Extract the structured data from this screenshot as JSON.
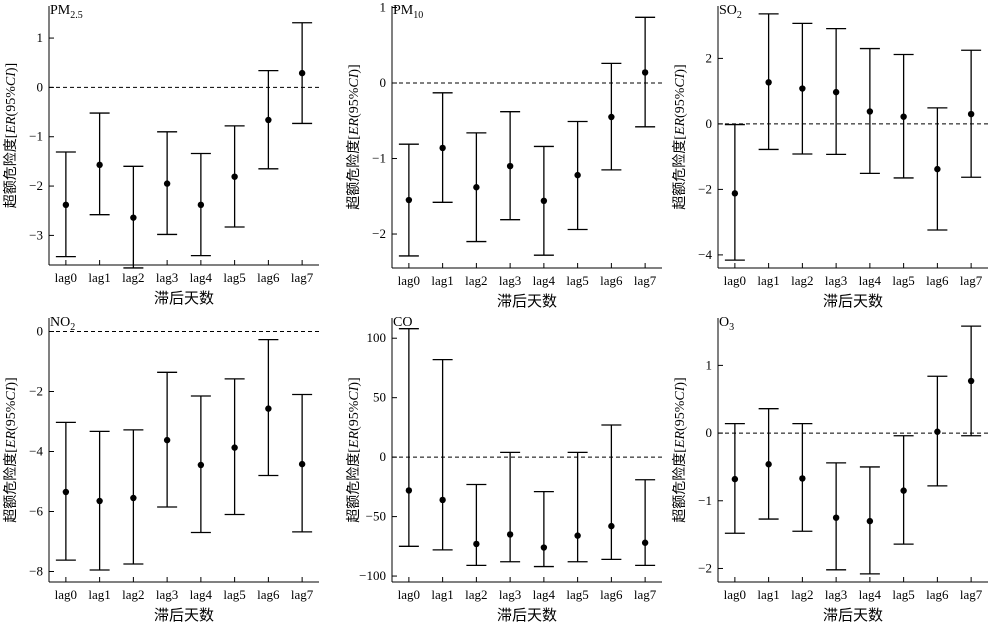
{
  "chart_data": [
    {
      "type": "errorbar",
      "title": {
        "main": "PM",
        "sub": "2.5"
      },
      "xlabel": "滞后天数",
      "ylabel": {
        "prefix": "超额危险度",
        "open": "[",
        "er": "ER",
        "ci": "(95%",
        "ci_it": "CI",
        "close": ")]"
      },
      "categories": [
        "lag0",
        "lag1",
        "lag2",
        "lag3",
        "lag4",
        "lag5",
        "lag6",
        "lag7"
      ],
      "ylim": [
        -3.6,
        1.65
      ],
      "yticks": [
        -3,
        -2,
        -1,
        0,
        1
      ],
      "ytick_labels": [
        "−3",
        "−2",
        "−1",
        "0",
        "1"
      ],
      "reference_line": 0,
      "values": [
        -2.38,
        -1.57,
        -2.64,
        -1.95,
        -2.38,
        -1.81,
        -0.66,
        0.29
      ],
      "lower": [
        -3.43,
        -2.58,
        -3.66,
        -2.98,
        -3.41,
        -2.83,
        -1.65,
        -0.73
      ],
      "upper": [
        -1.31,
        -0.52,
        -1.6,
        -0.9,
        -1.34,
        -0.78,
        0.34,
        1.31
      ]
    },
    {
      "type": "errorbar",
      "title": {
        "main": "PM",
        "sub": "10"
      },
      "xlabel": "滞后天数",
      "ylabel": {
        "prefix": "超额危险度",
        "open": "[",
        "er": "ER",
        "ci": "(95%",
        "ci_it": "CI",
        "close": ")]"
      },
      "categories": [
        "lag0",
        "lag1",
        "lag2",
        "lag3",
        "lag4",
        "lag5",
        "lag6",
        "lag7"
      ],
      "ylim": [
        -2.45,
        1.02
      ],
      "yticks": [
        -2,
        -1,
        0,
        1
      ],
      "ytick_labels": [
        "−2",
        "−1",
        "0",
        "1"
      ],
      "reference_line": 0,
      "values": [
        -1.55,
        -0.86,
        -1.38,
        -1.1,
        -1.56,
        -1.22,
        -0.45,
        0.14
      ],
      "lower": [
        -2.29,
        -1.58,
        -2.1,
        -1.81,
        -2.28,
        -1.94,
        -1.15,
        -0.58
      ],
      "upper": [
        -0.81,
        -0.13,
        -0.66,
        -0.38,
        -0.84,
        -0.51,
        0.26,
        0.87
      ]
    },
    {
      "type": "errorbar",
      "title": {
        "main": "SO",
        "sub": "2"
      },
      "xlabel": "滞后天数",
      "ylabel": {
        "prefix": "超额危险度",
        "open": "[",
        "er": "ER",
        "ci": "(95%",
        "ci_it": "CI",
        "close": ")]"
      },
      "categories": [
        "lag0",
        "lag1",
        "lag2",
        "lag3",
        "lag4",
        "lag5",
        "lag6",
        "lag7"
      ],
      "ylim": [
        -4.4,
        3.6
      ],
      "yticks": [
        -4,
        -2,
        0,
        2
      ],
      "ytick_labels": [
        "−4",
        "−2",
        "0",
        "2"
      ],
      "reference_line": 0,
      "values": [
        -2.12,
        1.27,
        1.08,
        0.97,
        0.38,
        0.22,
        -1.38,
        0.3
      ],
      "lower": [
        -4.16,
        -0.78,
        -0.92,
        -0.93,
        -1.51,
        -1.65,
        -3.24,
        -1.63
      ],
      "upper": [
        -0.02,
        3.36,
        3.07,
        2.91,
        2.3,
        2.12,
        0.49,
        2.25
      ]
    },
    {
      "type": "errorbar",
      "title": {
        "main": "NO",
        "sub": "2"
      },
      "xlabel": "滞后天数",
      "ylabel": {
        "prefix": "超额危险度",
        "open": "[",
        "er": "ER",
        "ci": "(95%",
        "ci_it": "CI",
        "close": ")]"
      },
      "categories": [
        "lag0",
        "lag1",
        "lag2",
        "lag3",
        "lag4",
        "lag5",
        "lag6",
        "lag7"
      ],
      "ylim": [
        -8.35,
        0.45
      ],
      "yticks": [
        -8,
        -6,
        -4,
        -2,
        0
      ],
      "ytick_labels": [
        "−8",
        "−6",
        "−4",
        "−2",
        "0"
      ],
      "reference_line": 0,
      "values": [
        -5.35,
        -5.65,
        -5.55,
        -3.62,
        -4.45,
        -3.87,
        -2.57,
        -4.42
      ],
      "lower": [
        -7.62,
        -7.95,
        -7.75,
        -5.85,
        -6.7,
        -6.1,
        -4.8,
        -6.68
      ],
      "upper": [
        -3.03,
        -3.33,
        -3.28,
        -1.36,
        -2.15,
        -1.58,
        -0.27,
        -2.1
      ]
    },
    {
      "type": "errorbar",
      "title": {
        "main": "CO",
        "sub": ""
      },
      "xlabel": "滞后天数",
      "ylabel": {
        "prefix": "超额危险度",
        "open": "[",
        "er": "ER",
        "ci": "(95%",
        "ci_it": "CI",
        "close": ")]"
      },
      "categories": [
        "lag0",
        "lag1",
        "lag2",
        "lag3",
        "lag4",
        "lag5",
        "lag6",
        "lag7"
      ],
      "ylim": [
        -105,
        117
      ],
      "yticks": [
        -100,
        -50,
        0,
        50,
        100
      ],
      "ytick_labels": [
        "−100",
        "−50",
        "0",
        "50",
        "100"
      ],
      "reference_line": 0,
      "values": [
        -28,
        -36,
        -73,
        -65,
        -76,
        -66,
        -58,
        -72
      ],
      "lower": [
        -75,
        -78,
        -91,
        -88,
        -92,
        -88,
        -86,
        -91
      ],
      "upper": [
        108,
        82,
        -23,
        4,
        -29,
        4,
        27,
        -19
      ]
    },
    {
      "type": "errorbar",
      "title": {
        "main": "O",
        "sub": "3"
      },
      "xlabel": "滞后天数",
      "ylabel": {
        "prefix": "超额危险度",
        "open": "[",
        "er": "ER",
        "ci": "(95%",
        "ci_it": "CI",
        "close": ")]"
      },
      "categories": [
        "lag0",
        "lag1",
        "lag2",
        "lag3",
        "lag4",
        "lag5",
        "lag6",
        "lag7"
      ],
      "ylim": [
        -2.2,
        1.7
      ],
      "yticks": [
        -2,
        -1,
        0,
        1
      ],
      "ytick_labels": [
        "−2",
        "−1",
        "0",
        "1"
      ],
      "reference_line": 0,
      "values": [
        -0.68,
        -0.46,
        -0.67,
        -1.25,
        -1.3,
        -0.85,
        0.02,
        0.77
      ],
      "lower": [
        -1.48,
        -1.27,
        -1.45,
        -2.02,
        -2.08,
        -1.64,
        -0.78,
        -0.04
      ],
      "upper": [
        0.14,
        0.36,
        0.14,
        -0.44,
        -0.5,
        -0.04,
        0.84,
        1.58
      ]
    }
  ]
}
